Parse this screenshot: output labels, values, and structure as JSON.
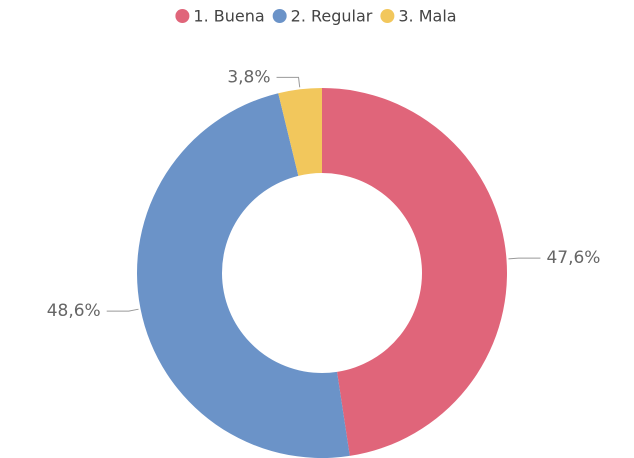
{
  "chart_data": {
    "type": "donut",
    "categories": [
      "1. Buena",
      "2. Regular",
      "3. Mala"
    ],
    "values": [
      47.6,
      48.6,
      3.8
    ],
    "value_labels": [
      "47,6%",
      "48,6%",
      "3,8%"
    ],
    "colors": [
      "#e0657a",
      "#6b93c8",
      "#f2c75c"
    ],
    "legend": "top"
  }
}
